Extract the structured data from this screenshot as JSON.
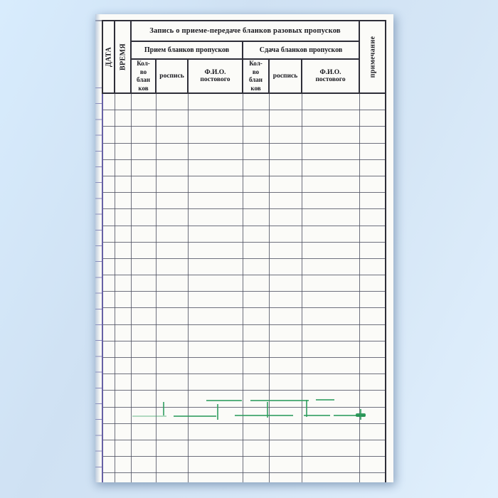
{
  "table": {
    "title": "Запись о приеме-передаче бланков разовых пропусков",
    "row_labels": {
      "date": "ДАТА",
      "time": "ВРЕМЯ",
      "note": "примечание"
    },
    "groups": [
      {
        "label": "Прием бланков пропусков"
      },
      {
        "label": "Сдача бланков пропусков"
      }
    ],
    "sub_columns": [
      {
        "label": "Кол-\nво\nблан\nков"
      },
      {
        "label": "роспись"
      },
      {
        "label": "Ф.И.О.\nпостового"
      },
      {
        "label": "Кол-\nво\nблан\nков"
      },
      {
        "label": "роспись"
      },
      {
        "label": "Ф.И.О.\nпостового"
      }
    ],
    "body": {
      "row_count": 25,
      "column_count": 9,
      "cells_empty": true
    }
  },
  "colors": {
    "background_blue": "#d5e7f8",
    "paper": "#fbfbf8",
    "grid_line": "#4e5161",
    "header_line": "#2e2e38",
    "margin_ink": "#4c4596",
    "text": "#17171d",
    "green_ink": "#2f9e5f"
  }
}
